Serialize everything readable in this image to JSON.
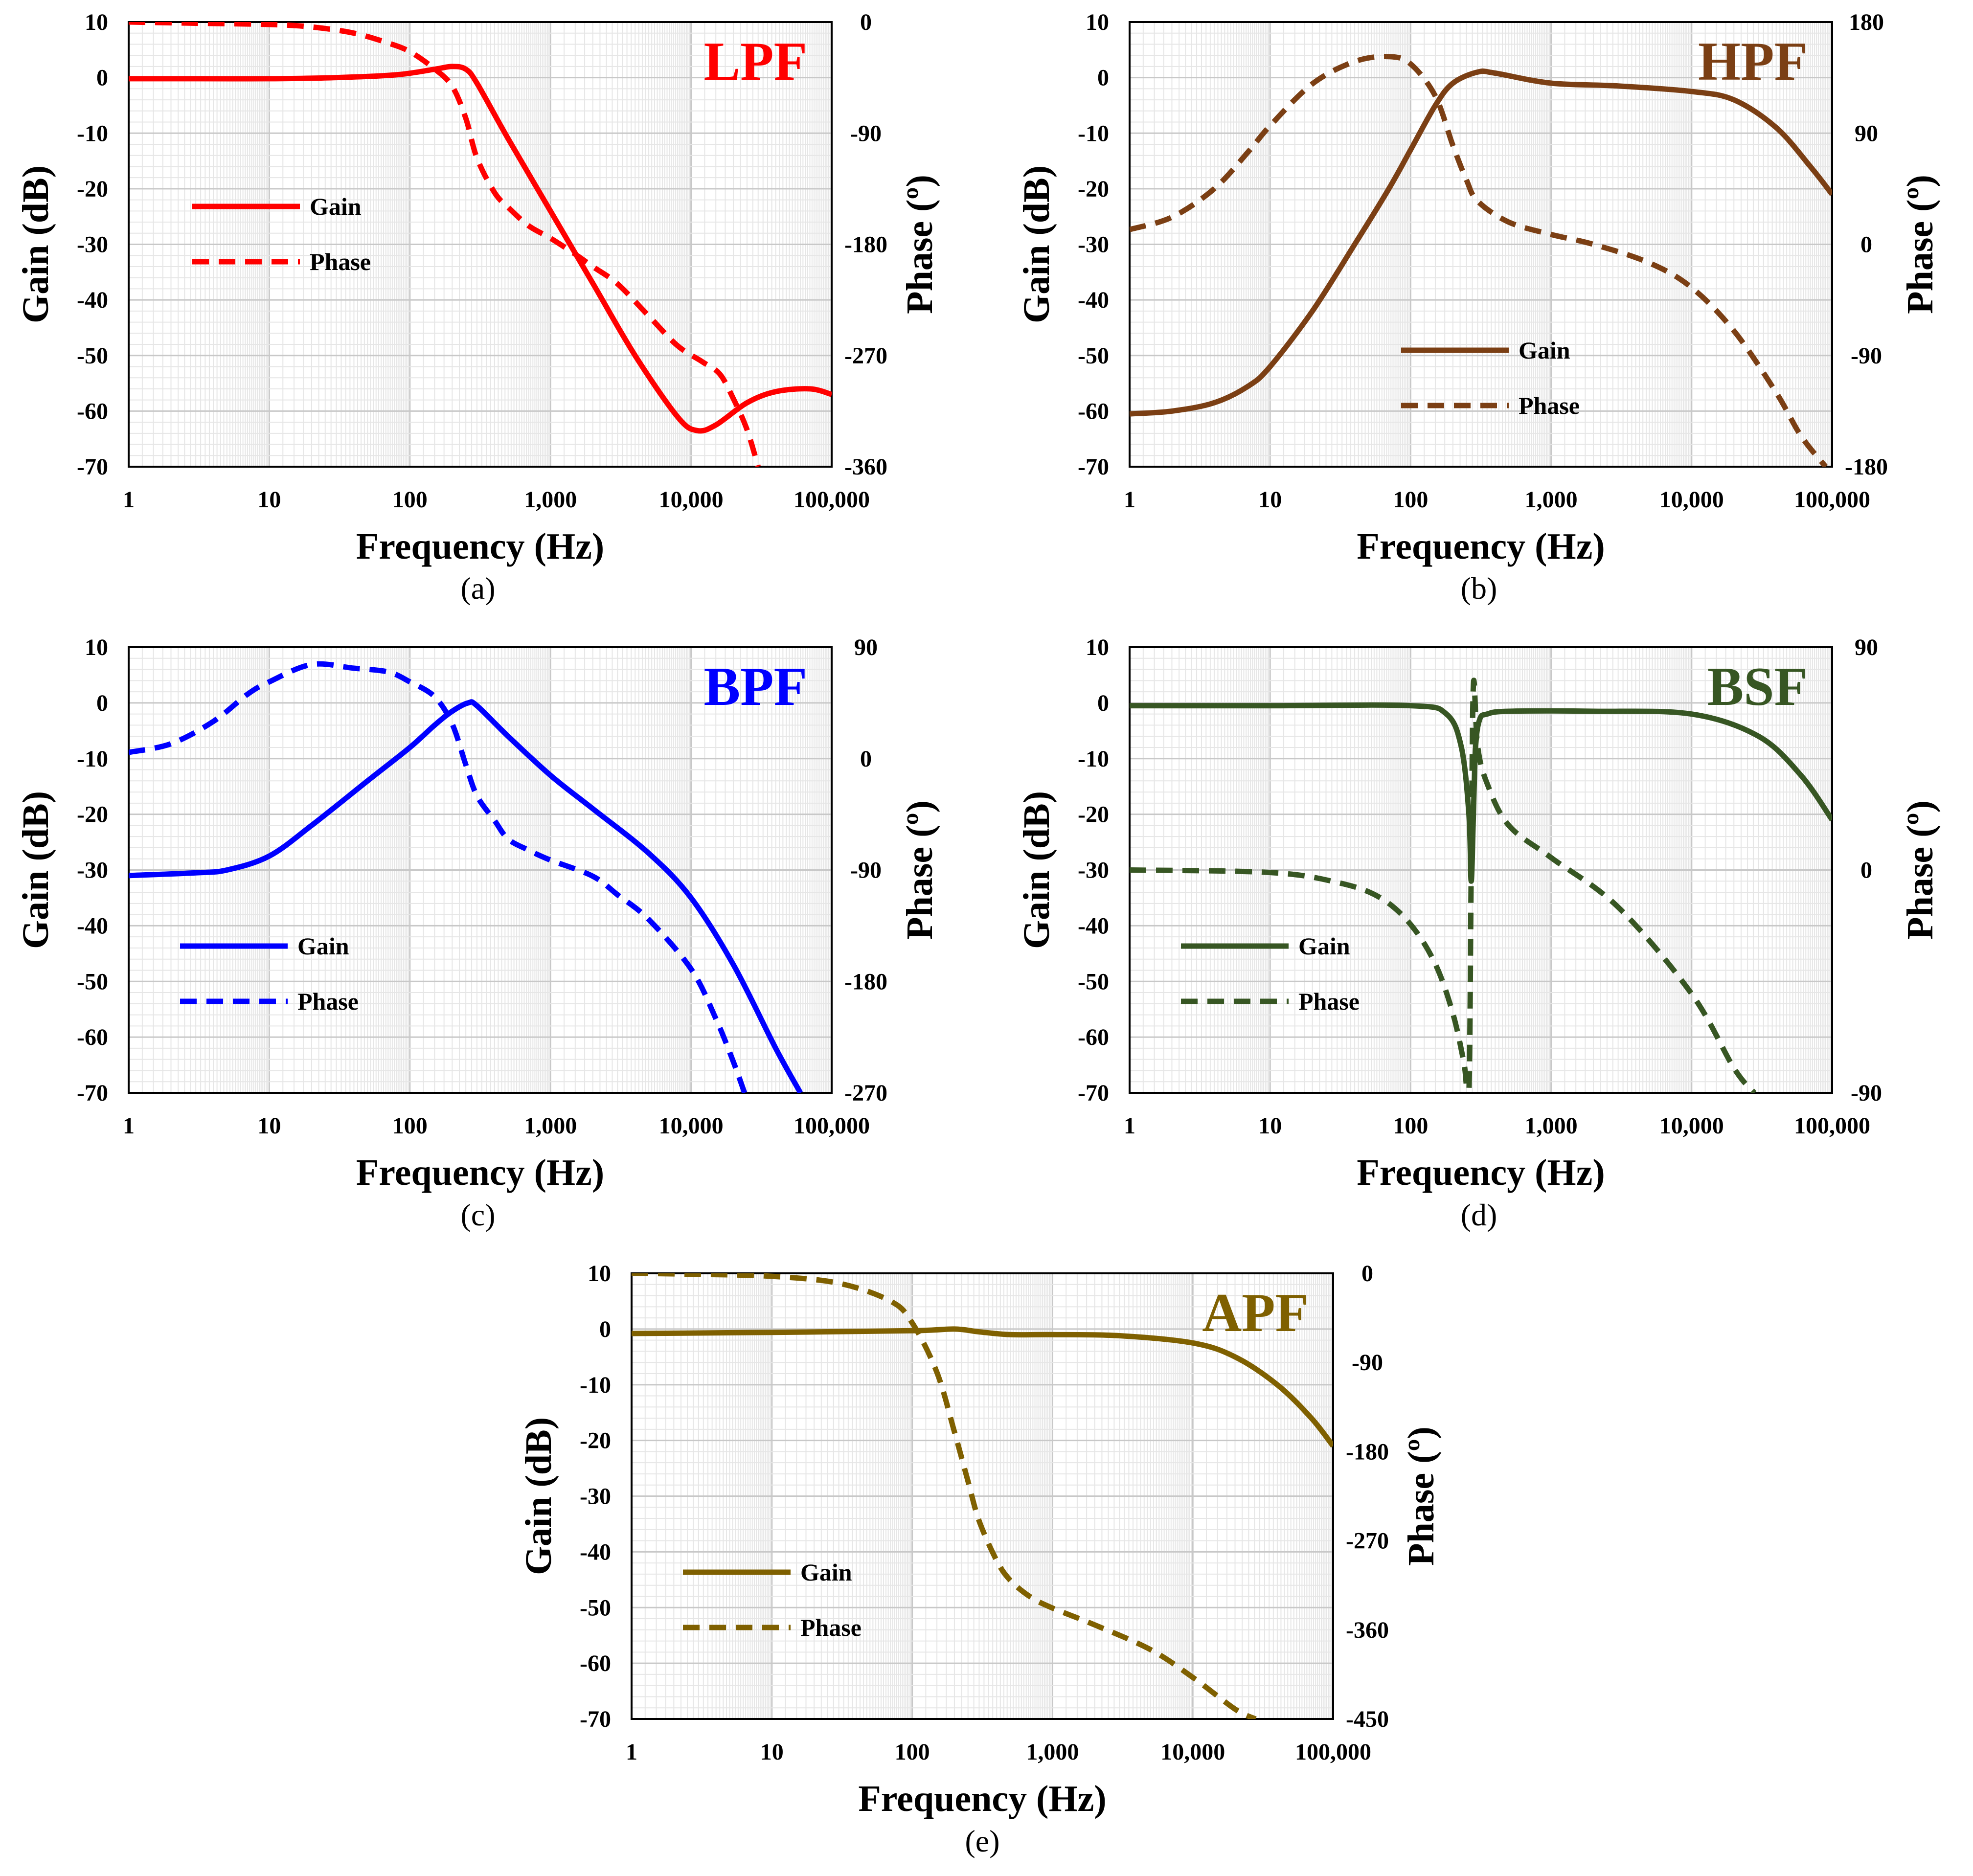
{
  "figure": {
    "x_axis_label": "Frequency (Hz)",
    "left_axis_label": "Gain (dB)",
    "right_axis_label": "Phase (º)",
    "legend_gain": "Gain",
    "legend_phase": "Phase",
    "x_tick_labels": [
      "1",
      "10",
      "100",
      "1,000",
      "10,000",
      "100,000"
    ]
  },
  "chart_data": [
    {
      "type": "line",
      "panel_label": "(a)",
      "title": "LPF",
      "color": "#ff0000",
      "x_scale": "log",
      "xlim": [
        1,
        100000
      ],
      "ylim_gain": [
        -70,
        10
      ],
      "gain_ticks": [
        10,
        0,
        -10,
        -20,
        -30,
        -40,
        -50,
        -60,
        -70
      ],
      "phase_ticks": [
        0,
        -90,
        -180,
        -270,
        -360
      ],
      "ylim_phase": [
        -360,
        0
      ],
      "legend_position": "left-middle",
      "series": [
        {
          "name": "Gain",
          "axis": "left",
          "style": "solid",
          "x": [
            1,
            3,
            10,
            30,
            80,
            150,
            200,
            250,
            300,
            500,
            1000,
            2000,
            4000,
            8000,
            11000,
            15000,
            25000,
            40000,
            70000,
            100000
          ],
          "y": [
            -0.2,
            -0.2,
            -0.2,
            0,
            0.5,
            1.5,
            2,
            1.5,
            -1,
            -11,
            -24,
            -37,
            -50,
            -61,
            -63.5,
            -62.5,
            -58.5,
            -56.5,
            -56,
            -57
          ]
        },
        {
          "name": "Phase",
          "axis": "right",
          "style": "dashed",
          "x": [
            1,
            3,
            10,
            20,
            40,
            70,
            100,
            150,
            200,
            250,
            300,
            400,
            500,
            700,
            1000,
            1500,
            2000,
            3000,
            5000,
            8000,
            12000,
            16000,
            20000,
            25000,
            30000
          ],
          "y": [
            0,
            -1,
            -2,
            -4,
            -9,
            -17,
            -24,
            -38,
            -52,
            -78,
            -110,
            -138,
            -150,
            -165,
            -175,
            -188,
            -198,
            -212,
            -238,
            -262,
            -275,
            -285,
            -305,
            -330,
            -360
          ]
        }
      ]
    },
    {
      "type": "line",
      "panel_label": "(b)",
      "title": "HPF",
      "color": "#7b3f14",
      "x_scale": "log",
      "xlim": [
        1,
        100000
      ],
      "ylim_gain": [
        -70,
        10
      ],
      "gain_ticks": [
        10,
        0,
        -10,
        -20,
        -30,
        -40,
        -50,
        -60,
        -70
      ],
      "phase_ticks": [
        180,
        90,
        0,
        -90,
        -180
      ],
      "ylim_phase": [
        -180,
        180
      ],
      "legend_position": "center-bottom",
      "series": [
        {
          "name": "Gain",
          "axis": "left",
          "style": "solid",
          "x": [
            1,
            2,
            4,
            7,
            10,
            20,
            40,
            70,
            100,
            150,
            200,
            300,
            400,
            1000,
            3000,
            10000,
            20000,
            40000,
            70000,
            100000
          ],
          "y": [
            -60.5,
            -60,
            -58.5,
            -55.5,
            -52,
            -42,
            -30,
            -20,
            -13,
            -5,
            -1,
            1,
            0.8,
            -1,
            -1.5,
            -2.5,
            -4,
            -9,
            -16,
            -21
          ]
        },
        {
          "name": "Phase",
          "axis": "right",
          "style": "dashed",
          "x": [
            1,
            2,
            4,
            7,
            10,
            20,
            40,
            70,
            100,
            150,
            200,
            250,
            300,
            500,
            1000,
            2000,
            5000,
            10000,
            20000,
            40000,
            60000,
            90000
          ],
          "y": [
            12,
            22,
            45,
            75,
            96,
            130,
            148,
            152,
            146,
            120,
            80,
            52,
            35,
            18,
            8,
            0,
            -15,
            -35,
            -70,
            -120,
            -155,
            -180
          ]
        }
      ]
    },
    {
      "type": "line",
      "panel_label": "(c)",
      "title": "BPF",
      "color": "#0000ff",
      "x_scale": "log",
      "xlim": [
        1,
        100000
      ],
      "ylim_gain": [
        -70,
        10
      ],
      "gain_ticks": [
        10,
        0,
        -10,
        -20,
        -30,
        -40,
        -50,
        -60,
        -70
      ],
      "phase_ticks": [
        90,
        0,
        -90,
        -180,
        -270
      ],
      "ylim_phase": [
        -270,
        90
      ],
      "legend_position": "left-bottom",
      "series": [
        {
          "name": "Gain",
          "axis": "left",
          "style": "solid",
          "x": [
            1,
            3,
            5,
            10,
            20,
            50,
            100,
            150,
            200,
            260,
            300,
            500,
            1000,
            2000,
            5000,
            10000,
            20000,
            40000,
            60000
          ],
          "y": [
            -31,
            -30.5,
            -30,
            -27.5,
            -22,
            -14,
            -8,
            -4,
            -1.5,
            0,
            -0.5,
            -6,
            -13,
            -19,
            -27,
            -35,
            -47,
            -62,
            -70
          ]
        },
        {
          "name": "Phase",
          "axis": "right",
          "style": "dashed",
          "x": [
            1,
            2,
            4,
            7,
            10,
            20,
            40,
            70,
            100,
            150,
            200,
            250,
            300,
            400,
            500,
            700,
            1000,
            2000,
            3000,
            5000,
            10000,
            15000,
            20000,
            24000
          ],
          "y": [
            5,
            12,
            30,
            52,
            62,
            76,
            73,
            70,
            62,
            50,
            28,
            -5,
            -30,
            -50,
            -65,
            -74,
            -82,
            -95,
            -110,
            -130,
            -170,
            -210,
            -245,
            -270
          ]
        }
      ]
    },
    {
      "type": "line",
      "panel_label": "(d)",
      "title": "BSF",
      "color": "#375623",
      "x_scale": "log",
      "xlim": [
        1,
        100000
      ],
      "ylim_gain": [
        -70,
        10
      ],
      "gain_ticks": [
        10,
        0,
        -10,
        -20,
        -30,
        -40,
        -50,
        -60,
        -70
      ],
      "phase_ticks": [
        90,
        0,
        -90
      ],
      "ylim_phase": [
        -90,
        90
      ],
      "legend_position": "left-bottom",
      "series": [
        {
          "name": "Gain",
          "axis": "left",
          "style": "solid",
          "x": [
            1,
            10,
            100,
            180,
            230,
            260,
            270,
            280,
            290,
            310,
            350,
            500,
            2000,
            10000,
            30000,
            60000,
            100000
          ],
          "y": [
            -0.5,
            -0.5,
            -0.5,
            -2,
            -8,
            -20,
            -32,
            -20,
            -8,
            -3,
            -2,
            -1.5,
            -1.5,
            -2,
            -6,
            -13,
            -21
          ]
        },
        {
          "name": "Phase",
          "axis": "right",
          "style": "dashed",
          "x": [
            1,
            10,
            30,
            60,
            100,
            150,
            200,
            240,
            260,
            270,
            280,
            300,
            350,
            500,
            1000,
            3000,
            10000,
            20000,
            28000
          ],
          "y": [
            0,
            -1,
            -5,
            -11,
            -22,
            -38,
            -58,
            -78,
            -90,
            0,
            75,
            50,
            35,
            18,
            5,
            -15,
            -50,
            -80,
            -90
          ]
        }
      ]
    },
    {
      "type": "line",
      "panel_label": "(e)",
      "title": "APF",
      "color": "#7f6000",
      "x_scale": "log",
      "xlim": [
        1,
        100000
      ],
      "ylim_gain": [
        -70,
        10
      ],
      "gain_ticks": [
        10,
        0,
        -10,
        -20,
        -30,
        -40,
        -50,
        -60,
        -70
      ],
      "phase_ticks": [
        0,
        -90,
        -180,
        -270,
        -360,
        -450
      ],
      "ylim_phase": [
        -450,
        0
      ],
      "legend_position": "left-bottom",
      "series": [
        {
          "name": "Gain",
          "axis": "left",
          "style": "solid",
          "x": [
            1,
            10,
            100,
            200,
            300,
            500,
            1000,
            3000,
            10000,
            20000,
            40000,
            70000,
            100000
          ],
          "y": [
            -0.8,
            -0.6,
            -0.3,
            0,
            -0.5,
            -1,
            -1,
            -1.2,
            -2.5,
            -5,
            -10,
            -16,
            -21
          ]
        },
        {
          "name": "Phase",
          "axis": "right",
          "style": "dashed",
          "x": [
            1,
            3,
            10,
            30,
            70,
            100,
            150,
            200,
            250,
            300,
            400,
            500,
            700,
            1000,
            2000,
            5000,
            10000,
            20000,
            28000
          ],
          "y": [
            0,
            -1,
            -3,
            -10,
            -28,
            -50,
            -100,
            -160,
            -210,
            -250,
            -290,
            -310,
            -327,
            -338,
            -355,
            -380,
            -408,
            -440,
            -450
          ]
        }
      ]
    }
  ]
}
